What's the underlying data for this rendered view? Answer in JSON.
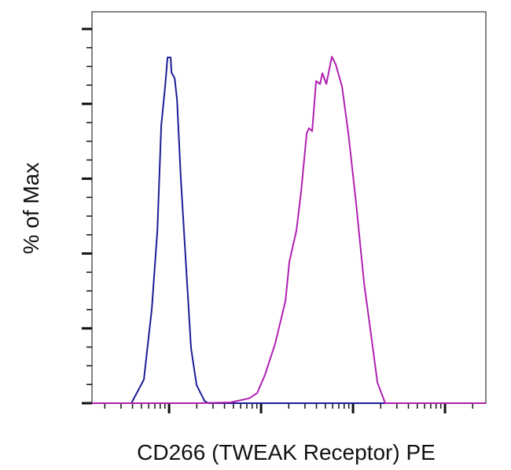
{
  "chart_data": {
    "type": "line",
    "title": "",
    "xlabel": "CD266 (TWEAK Receptor) PE",
    "ylabel": "% of Max",
    "x_scale": "log",
    "xlim": [
      14.5,
      278000
    ],
    "ylim": [
      0,
      104.6
    ],
    "y_major_ticks": [
      0,
      20,
      40,
      60,
      80,
      100
    ],
    "x_major_ticks": [
      100,
      1000,
      10000,
      100000
    ],
    "tick_labels_shown": false,
    "grid": false,
    "legend": "none",
    "series": [
      {
        "color": "#1c1c96",
        "x": [
          14.5,
          38.9,
          53.2,
          64.9,
          74.5,
          82.2,
          90.6,
          96.2,
          104,
          106,
          115,
          122,
          134,
          157,
          173,
          199,
          243,
          267,
          278000
        ],
        "y": [
          0,
          0,
          6.3,
          25.2,
          46.2,
          74.2,
          84.7,
          92.4,
          92.4,
          88.4,
          86.8,
          81.1,
          60.1,
          32.1,
          14.7,
          4.8,
          0.6,
          0,
          0
        ]
      },
      {
        "color": "#b020b0",
        "x": [
          14.5,
          199,
          464,
          745,
          906,
          1104,
          1426,
          1842,
          2032,
          2425,
          2729,
          3133,
          3322,
          3594,
          3966,
          4375,
          4645,
          5121,
          5880,
          6486,
          7586,
          8886,
          10820,
          13170,
          15740,
          18420,
          22400,
          278000
        ],
        "y": [
          0,
          0,
          0.2,
          1.3,
          2.7,
          7.6,
          16.0,
          27.3,
          37.8,
          46.2,
          56.7,
          72.1,
          73.5,
          72.7,
          86.1,
          85.3,
          88.2,
          85.3,
          92.6,
          90.5,
          84.7,
          72.1,
          53.2,
          32.1,
          18.1,
          5.5,
          0,
          0
        ]
      }
    ]
  }
}
